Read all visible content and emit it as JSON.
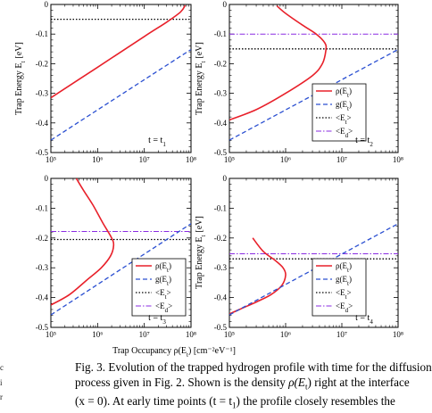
{
  "figure": {
    "ylabel_main": "Trap Energy  E",
    "ylabel_sub": "t",
    "ylabel_unit": "[eV]",
    "xlabel_main": "Trap Occupancy  ρ(E",
    "xlabel_sub": "t",
    "xlabel_unit": ") [cm⁻²eV⁻¹]",
    "legend": {
      "rho": "ρ(E",
      "rho_sub": "t",
      "rho_end": ")",
      "g": "g(E",
      "g_sub": "t",
      "g_end": ")",
      "et": "<E",
      "et_sub": "t",
      "et_end": ">",
      "ed": "<E",
      "ed_sub": "d",
      "ed_end": ">"
    },
    "colors": {
      "rho": "#e8202a",
      "g": "#2a4fd1",
      "et": "#000000",
      "ed": "#8a2be2"
    }
  },
  "chart_data": [
    {
      "type": "line",
      "panel": "top-left",
      "time_label": "t = t",
      "time_sub": "1",
      "x_scale": "log",
      "xlim": [
        100000,
        100000000
      ],
      "ylim": [
        -0.5,
        0
      ],
      "x_ticks": [
        "10⁵",
        "10⁶",
        "10⁷",
        "10⁸"
      ],
      "y_ticks": [
        "0",
        "-0.1",
        "-0.2",
        "-0.3",
        "-0.4",
        "-0.5"
      ],
      "series": [
        {
          "name": "ρ(Et)",
          "x": [
            100000,
            1000000,
            10000000,
            30000000,
            60000000,
            75000000
          ],
          "y": [
            -0.315,
            -0.212,
            -0.108,
            -0.06,
            -0.025,
            -0.003
          ]
        },
        {
          "name": "g(Et)",
          "x": [
            100000,
            1000000,
            10000000,
            100000000
          ],
          "y": [
            -0.458,
            -0.356,
            -0.254,
            -0.152
          ]
        }
      ],
      "hlines": [
        {
          "name": "<Et>",
          "y": -0.05
        }
      ]
    },
    {
      "type": "line",
      "panel": "top-right",
      "time_label": "t = t",
      "time_sub": "2",
      "x_scale": "log",
      "xlim": [
        100000,
        100000000
      ],
      "ylim": [
        -0.5,
        0
      ],
      "x_ticks": [
        "10⁵",
        "10⁶",
        "10⁷",
        "10⁸"
      ],
      "y_ticks": [
        "0",
        "-0.1",
        "-0.2",
        "-0.3",
        "-0.4",
        "-0.5"
      ],
      "series": [
        {
          "name": "ρ(Et)",
          "x": [
            700000,
            1000000,
            2000000,
            3500000,
            5000000,
            5200000,
            4500000,
            3000000,
            1000000,
            300000,
            100000
          ],
          "y": [
            -0.005,
            -0.03,
            -0.07,
            -0.1,
            -0.13,
            -0.155,
            -0.2,
            -0.24,
            -0.3,
            -0.355,
            -0.39
          ]
        },
        {
          "name": "g(Et)",
          "x": [
            100000,
            1000000,
            10000000,
            100000000
          ],
          "y": [
            -0.458,
            -0.356,
            -0.254,
            -0.152
          ]
        }
      ],
      "hlines": [
        {
          "name": "<Et>",
          "y": -0.15
        },
        {
          "name": "<Ed>",
          "y": -0.1
        }
      ]
    },
    {
      "type": "line",
      "panel": "bottom-left",
      "time_label": "t = t",
      "time_sub": "3",
      "x_scale": "log",
      "xlim": [
        100000,
        100000000
      ],
      "ylim": [
        -0.5,
        0
      ],
      "x_ticks": [
        "10⁵",
        "10⁶",
        "10⁷",
        "10⁸"
      ],
      "y_ticks": [
        "0",
        "-0.1",
        "-0.2",
        "-0.3",
        "-0.4",
        "-0.5"
      ],
      "series": [
        {
          "name": "ρ(Et)",
          "x": [
            350000,
            500000,
            800000,
            1300000,
            2000000,
            2200000,
            1900000,
            1200000,
            600000,
            250000,
            100000
          ],
          "y": [
            0,
            -0.04,
            -0.09,
            -0.15,
            -0.2,
            -0.225,
            -0.26,
            -0.3,
            -0.34,
            -0.39,
            -0.425
          ]
        },
        {
          "name": "g(Et)",
          "x": [
            100000,
            1000000,
            10000000,
            100000000
          ],
          "y": [
            -0.458,
            -0.356,
            -0.254,
            -0.152
          ]
        }
      ],
      "hlines": [
        {
          "name": "<Et>",
          "y": -0.205
        },
        {
          "name": "<Ed>",
          "y": -0.178
        }
      ]
    },
    {
      "type": "line",
      "panel": "bottom-right",
      "time_label": "t = t",
      "time_sub": "4",
      "x_scale": "log",
      "xlim": [
        100000,
        100000000
      ],
      "ylim": [
        -0.5,
        0
      ],
      "x_ticks": [
        "10⁵",
        "10⁶",
        "10⁷",
        "10⁸"
      ],
      "y_ticks": [
        "0",
        "-0.1",
        "-0.2",
        "-0.3",
        "-0.4",
        "-0.5"
      ],
      "series": [
        {
          "name": "ρ(Et)",
          "x": [
            260000,
            400000,
            650000,
            900000,
            1000000,
            850000,
            550000,
            300000,
            150000,
            100000
          ],
          "y": [
            -0.2,
            -0.245,
            -0.275,
            -0.3,
            -0.325,
            -0.36,
            -0.39,
            -0.415,
            -0.44,
            -0.455
          ]
        },
        {
          "name": "g(Et)",
          "x": [
            100000,
            1000000,
            10000000,
            100000000
          ],
          "y": [
            -0.458,
            -0.356,
            -0.254,
            -0.152
          ]
        }
      ],
      "hlines": [
        {
          "name": "<Et>",
          "y": -0.27
        },
        {
          "name": "<Ed>",
          "y": -0.253
        }
      ]
    }
  ],
  "caption": {
    "line1_a": "Fig. 3.   Evolution of the trapped hydrogen profile with time for the diffusion",
    "line2_a": "process given in Fig. 2. Shown is the density ",
    "line2_math": "ρ(E",
    "line2_sub": "t",
    "line2_b": ") right at the interface",
    "line3_a": "(x = 0). At early time points (t = t",
    "line3_sub": "1",
    "line3_b": ") the profile closely resembles the"
  },
  "side_fragments": [
    "c",
    "i",
    "r"
  ]
}
